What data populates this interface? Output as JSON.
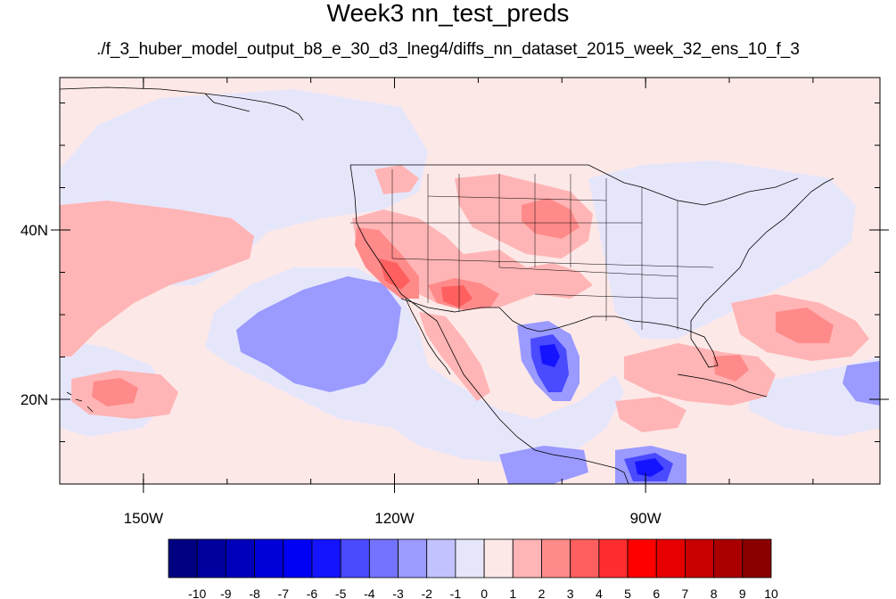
{
  "title": "Week3 nn_test_preds",
  "subtitle": "./f_3_huber_model_output_b8_e_30_d3_lneg4/diffs_nn_dataset_2015_week_32_ens_10_f_3",
  "map": {
    "lon_range": [
      -160,
      -62
    ],
    "lat_range": [
      10,
      58
    ],
    "lat_ticks": [
      {
        "value": 40,
        "label": "40N"
      },
      {
        "value": 20,
        "label": "20N"
      }
    ],
    "lon_ticks": [
      {
        "value": -150,
        "label": "150W"
      },
      {
        "value": -120,
        "label": "120W"
      },
      {
        "value": -90,
        "label": "90W"
      }
    ],
    "background_color": "#fde8e8"
  },
  "colorbar": {
    "labels": [
      "-10",
      "-9",
      "-8",
      "-7",
      "-6",
      "-5",
      "-4",
      "-3",
      "-2",
      "-1",
      "0",
      "1",
      "2",
      "3",
      "4",
      "5",
      "6",
      "7",
      "8",
      "9",
      "10"
    ],
    "colors": [
      "#000080",
      "#00009e",
      "#0000bb",
      "#0000d9",
      "#0000f5",
      "#1414ff",
      "#4a4aff",
      "#7373ff",
      "#9a9aff",
      "#c2c2ff",
      "#e6e6fb",
      "#fde8e8",
      "#ffb5b5",
      "#ff8a8a",
      "#ff5f5f",
      "#ff2e2e",
      "#ff0000",
      "#e60000",
      "#c80000",
      "#aa0000",
      "#8a0000"
    ]
  }
}
